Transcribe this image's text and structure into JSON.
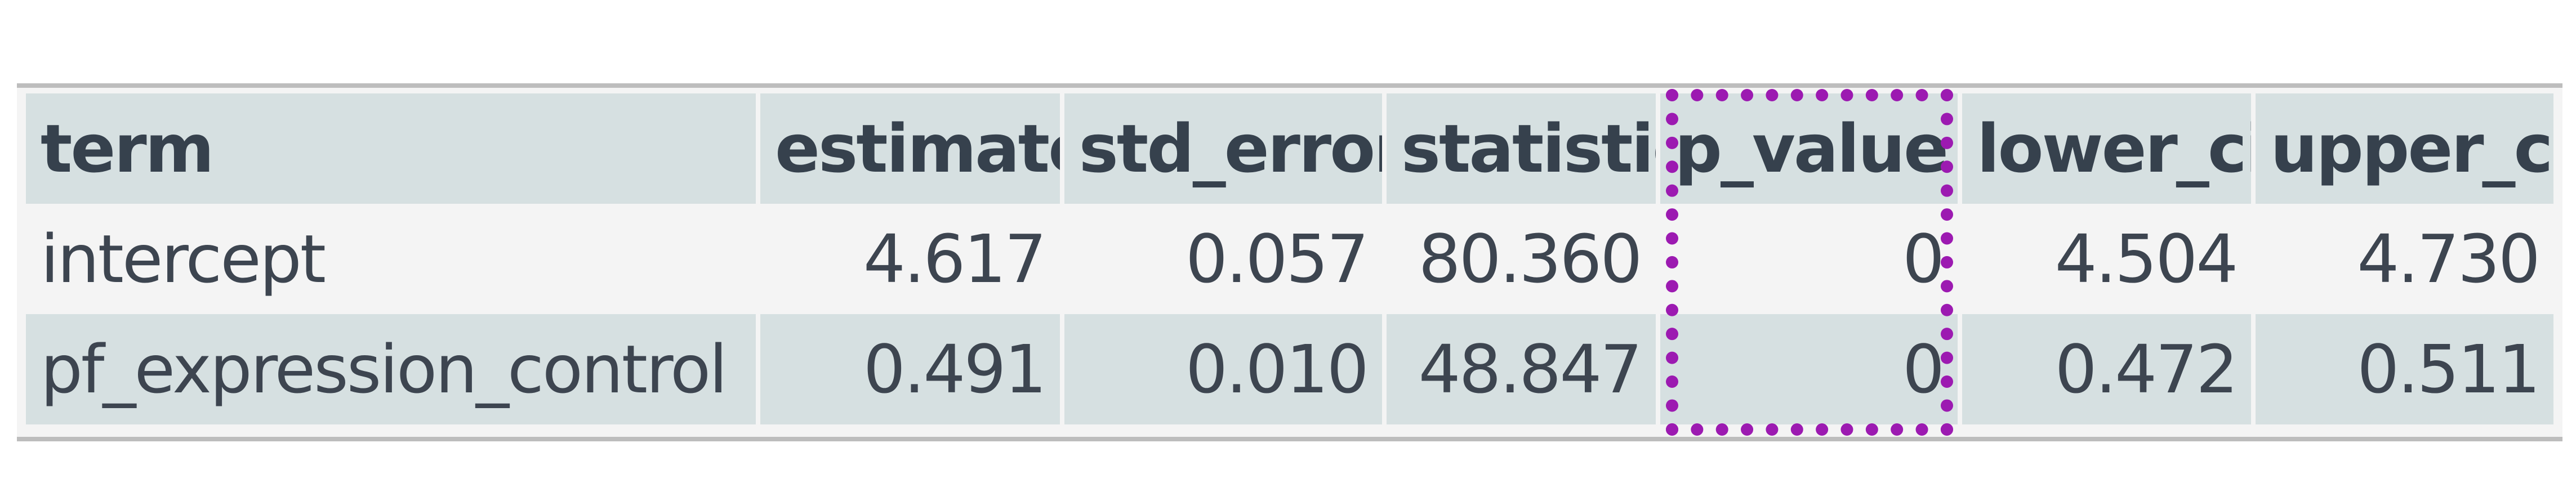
{
  "table": {
    "columns": [
      "term",
      "estimate",
      "std_error",
      "statistic",
      "p_value",
      "lower_ci",
      "upper_ci"
    ],
    "rows": [
      [
        "intercept",
        "4.617",
        "0.057",
        "80.360",
        "0",
        "4.504",
        "4.730"
      ],
      [
        "pf_expression_control",
        "0.491",
        "0.010",
        "48.847",
        "0",
        "0.472",
        "0.511"
      ]
    ]
  },
  "highlight": {
    "column": "p_value",
    "color": "#9c1ab1"
  },
  "colors": {
    "header_bg": "#d6e0e1",
    "stripe_bg": "#d6e0e1",
    "row_bg": "#f4f4f4",
    "text": "#3a4451"
  }
}
